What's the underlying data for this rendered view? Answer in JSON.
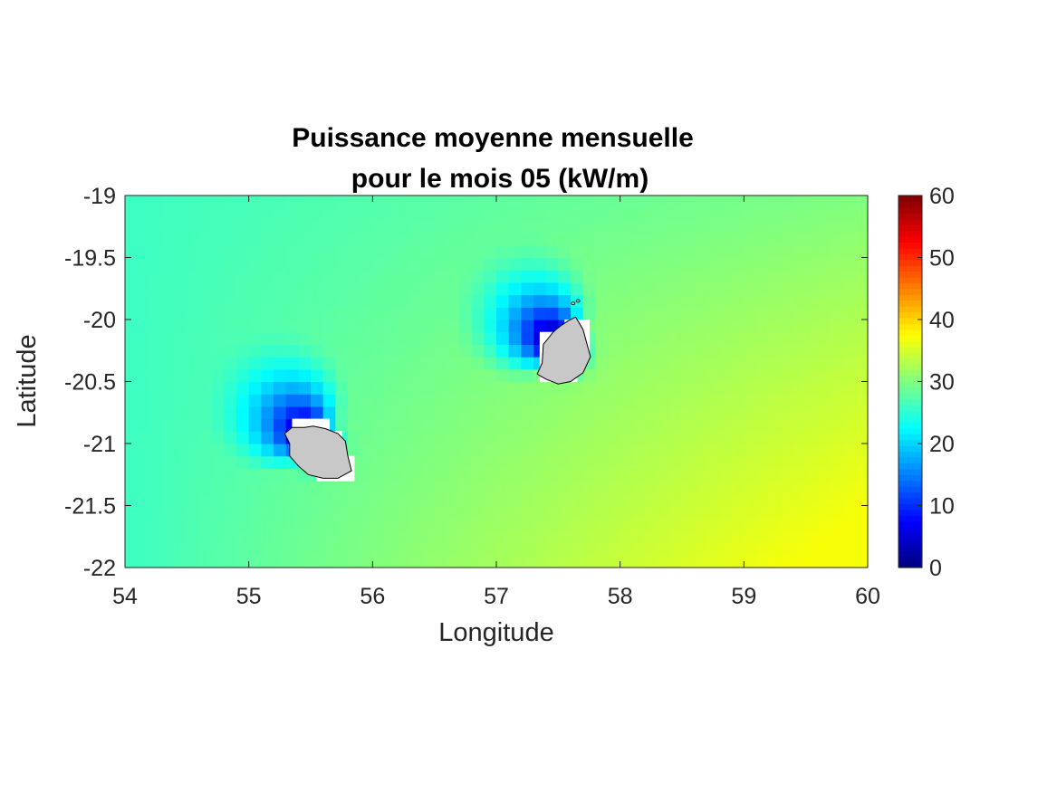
{
  "chart_data": {
    "type": "heatmap",
    "title_line1": "Puissance moyenne mensuelle",
    "title_line2": "pour le mois 05 (kW/m)",
    "xlabel": "Longitude",
    "ylabel": "Latitude",
    "xlim": [
      54,
      60
    ],
    "ylim": [
      -22,
      -19
    ],
    "xticks": [
      54,
      55,
      56,
      57,
      58,
      59,
      60
    ],
    "xtick_labels": [
      "54",
      "55",
      "56",
      "57",
      "58",
      "59",
      "60"
    ],
    "yticks": [
      -19,
      -19.5,
      -20,
      -20.5,
      -21,
      -21.5,
      -22
    ],
    "ytick_labels": [
      "-19",
      "-19.5",
      "-20",
      "-20.5",
      "-21",
      "-21.5",
      "-22"
    ],
    "colormap": "jet",
    "clim": [
      0,
      60
    ],
    "colorbar_ticks": [
      0,
      10,
      20,
      30,
      40,
      50,
      60
    ],
    "colorbar_tick_labels": [
      "0",
      "10",
      "20",
      "30",
      "40",
      "50",
      "60"
    ],
    "grid_resolution_deg": 0.1,
    "land_color": "#c8c8c8",
    "islands": [
      {
        "center_lon": 55.55,
        "center_lat": -21.0,
        "outline": [
          [
            55.33,
            -21.0
          ],
          [
            55.29,
            -20.92
          ],
          [
            55.35,
            -20.87
          ],
          [
            55.45,
            -20.87
          ],
          [
            55.52,
            -20.86
          ],
          [
            55.62,
            -20.88
          ],
          [
            55.72,
            -20.92
          ],
          [
            55.78,
            -20.98
          ],
          [
            55.8,
            -21.1
          ],
          [
            55.83,
            -21.22
          ],
          [
            55.72,
            -21.28
          ],
          [
            55.6,
            -21.28
          ],
          [
            55.48,
            -21.25
          ],
          [
            55.4,
            -21.18
          ],
          [
            55.33,
            -21.1
          ]
        ],
        "nodata_cells": [
          [
            55.4,
            -20.85
          ],
          [
            55.5,
            -20.85
          ],
          [
            55.6,
            -20.85
          ],
          [
            55.4,
            -20.95
          ],
          [
            55.5,
            -20.95
          ],
          [
            55.6,
            -20.95
          ],
          [
            55.7,
            -20.95
          ],
          [
            55.4,
            -21.05
          ],
          [
            55.5,
            -21.05
          ],
          [
            55.6,
            -21.05
          ],
          [
            55.7,
            -21.05
          ],
          [
            55.5,
            -21.15
          ],
          [
            55.6,
            -21.15
          ],
          [
            55.7,
            -21.15
          ],
          [
            55.8,
            -21.15
          ],
          [
            55.6,
            -21.25
          ],
          [
            55.7,
            -21.25
          ],
          [
            55.8,
            -21.25
          ]
        ],
        "sheltered_side": "north-west",
        "min_power_kw_per_m": 7
      },
      {
        "center_lon": 57.55,
        "center_lat": -20.25,
        "outline": [
          [
            57.64,
            -19.98
          ],
          [
            57.7,
            -20.08
          ],
          [
            57.76,
            -20.3
          ],
          [
            57.7,
            -20.43
          ],
          [
            57.6,
            -20.5
          ],
          [
            57.5,
            -20.52
          ],
          [
            57.4,
            -20.48
          ],
          [
            57.33,
            -20.44
          ],
          [
            57.37,
            -20.35
          ],
          [
            57.38,
            -20.2
          ],
          [
            57.46,
            -20.1
          ],
          [
            57.52,
            -20.05
          ],
          [
            57.58,
            -20.01
          ]
        ],
        "nodata_cells": [
          [
            57.6,
            -20.05
          ],
          [
            57.7,
            -20.05
          ],
          [
            57.4,
            -20.15
          ],
          [
            57.5,
            -20.15
          ],
          [
            57.6,
            -20.15
          ],
          [
            57.7,
            -20.15
          ],
          [
            57.4,
            -20.25
          ],
          [
            57.5,
            -20.25
          ],
          [
            57.6,
            -20.25
          ],
          [
            57.7,
            -20.25
          ],
          [
            57.4,
            -20.35
          ],
          [
            57.5,
            -20.35
          ],
          [
            57.6,
            -20.35
          ],
          [
            57.4,
            -20.45
          ],
          [
            57.5,
            -20.45
          ],
          [
            57.6,
            -20.45
          ]
        ],
        "sheltered_side": "north-west",
        "min_power_kw_per_m": 6
      }
    ],
    "islets": [
      [
        57.62,
        -19.87
      ],
      [
        57.66,
        -19.85
      ]
    ],
    "field": {
      "description_key": "background wave power increases from west (~26) to south-east (~37); near islands power drops to ~6-10",
      "west_value": 26,
      "east_north_value": 30,
      "south_east_value": 37
    }
  }
}
